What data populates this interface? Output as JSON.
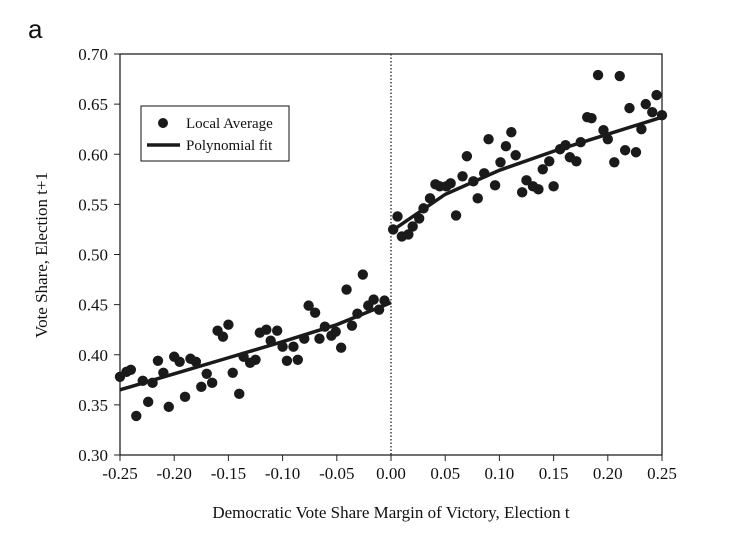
{
  "panel_label": "a",
  "chart_data": {
    "type": "scatter",
    "xlabel": "Democratic Vote Share Margin of Victory, Election t",
    "ylabel": "Vote Share, Election t+1",
    "xlim": [
      -0.25,
      0.25
    ],
    "ylim": [
      0.3,
      0.7
    ],
    "xticks": [
      "-0.25",
      "-0.20",
      "-0.15",
      "-0.10",
      "-0.05",
      "0.00",
      "0.05",
      "0.10",
      "0.15",
      "0.20",
      "0.25"
    ],
    "yticks": [
      "0.30",
      "0.35",
      "0.40",
      "0.45",
      "0.50",
      "0.55",
      "0.60",
      "0.65",
      "0.70"
    ],
    "grid": false,
    "legend_position": "top-left",
    "cutoff_line": {
      "x": 0.0,
      "style": "dotted"
    },
    "series": [
      {
        "name": "Local Average",
        "kind": "points",
        "color": "#1a1a1a",
        "x": [
          -0.25,
          -0.244,
          -0.24,
          -0.235,
          -0.229,
          -0.224,
          -0.22,
          -0.215,
          -0.21,
          -0.205,
          -0.2,
          -0.195,
          -0.19,
          -0.185,
          -0.18,
          -0.175,
          -0.17,
          -0.165,
          -0.16,
          -0.155,
          -0.15,
          -0.146,
          -0.14,
          -0.136,
          -0.13,
          -0.125,
          -0.121,
          -0.115,
          -0.111,
          -0.105,
          -0.1,
          -0.096,
          -0.09,
          -0.086,
          -0.08,
          -0.076,
          -0.07,
          -0.066,
          -0.061,
          -0.055,
          -0.051,
          -0.046,
          -0.041,
          -0.036,
          -0.031,
          -0.026,
          -0.021,
          -0.016,
          -0.011,
          -0.006,
          0.002,
          0.006,
          0.01,
          0.016,
          0.02,
          0.026,
          0.03,
          0.036,
          0.041,
          0.045,
          0.051,
          0.055,
          0.06,
          0.066,
          0.07,
          0.076,
          0.08,
          0.086,
          0.09,
          0.096,
          0.101,
          0.106,
          0.111,
          0.115,
          0.121,
          0.125,
          0.131,
          0.136,
          0.14,
          0.146,
          0.15,
          0.156,
          0.161,
          0.165,
          0.171,
          0.175,
          0.181,
          0.185,
          0.191,
          0.196,
          0.2,
          0.206,
          0.211,
          0.216,
          0.22,
          0.226,
          0.231,
          0.235,
          0.241,
          0.245,
          0.25
        ],
        "y": [
          0.378,
          0.383,
          0.385,
          0.339,
          0.374,
          0.353,
          0.372,
          0.394,
          0.382,
          0.348,
          0.398,
          0.393,
          0.358,
          0.396,
          0.393,
          0.368,
          0.381,
          0.372,
          0.424,
          0.418,
          0.43,
          0.382,
          0.361,
          0.398,
          0.392,
          0.395,
          0.422,
          0.425,
          0.414,
          0.424,
          0.408,
          0.394,
          0.408,
          0.395,
          0.416,
          0.449,
          0.442,
          0.416,
          0.428,
          0.419,
          0.423,
          0.407,
          0.465,
          0.429,
          0.441,
          0.48,
          0.449,
          0.455,
          0.445,
          0.454,
          0.525,
          0.538,
          0.518,
          0.52,
          0.528,
          0.536,
          0.546,
          0.556,
          0.57,
          0.568,
          0.568,
          0.571,
          0.539,
          0.578,
          0.598,
          0.573,
          0.556,
          0.581,
          0.615,
          0.569,
          0.592,
          0.608,
          0.622,
          0.599,
          0.562,
          0.574,
          0.568,
          0.565,
          0.585,
          0.593,
          0.568,
          0.605,
          0.609,
          0.597,
          0.593,
          0.612,
          0.637,
          0.636,
          0.679,
          0.624,
          0.615,
          0.592,
          0.678,
          0.604,
          0.646,
          0.602,
          0.625,
          0.65,
          0.642,
          0.659,
          0.639
        ]
      },
      {
        "name": "Polynomial fit",
        "kind": "line",
        "color": "#1a1a1a",
        "segments": [
          {
            "x": [
              -0.25,
              -0.2,
              -0.15,
              -0.1,
              -0.05,
              0.0
            ],
            "y": [
              0.365,
              0.381,
              0.397,
              0.413,
              0.43,
              0.452
            ]
          },
          {
            "x": [
              0.0,
              0.05,
              0.1,
              0.15,
              0.2,
              0.25
            ],
            "y": [
              0.523,
              0.56,
              0.584,
              0.603,
              0.62,
              0.637
            ]
          }
        ]
      }
    ]
  }
}
